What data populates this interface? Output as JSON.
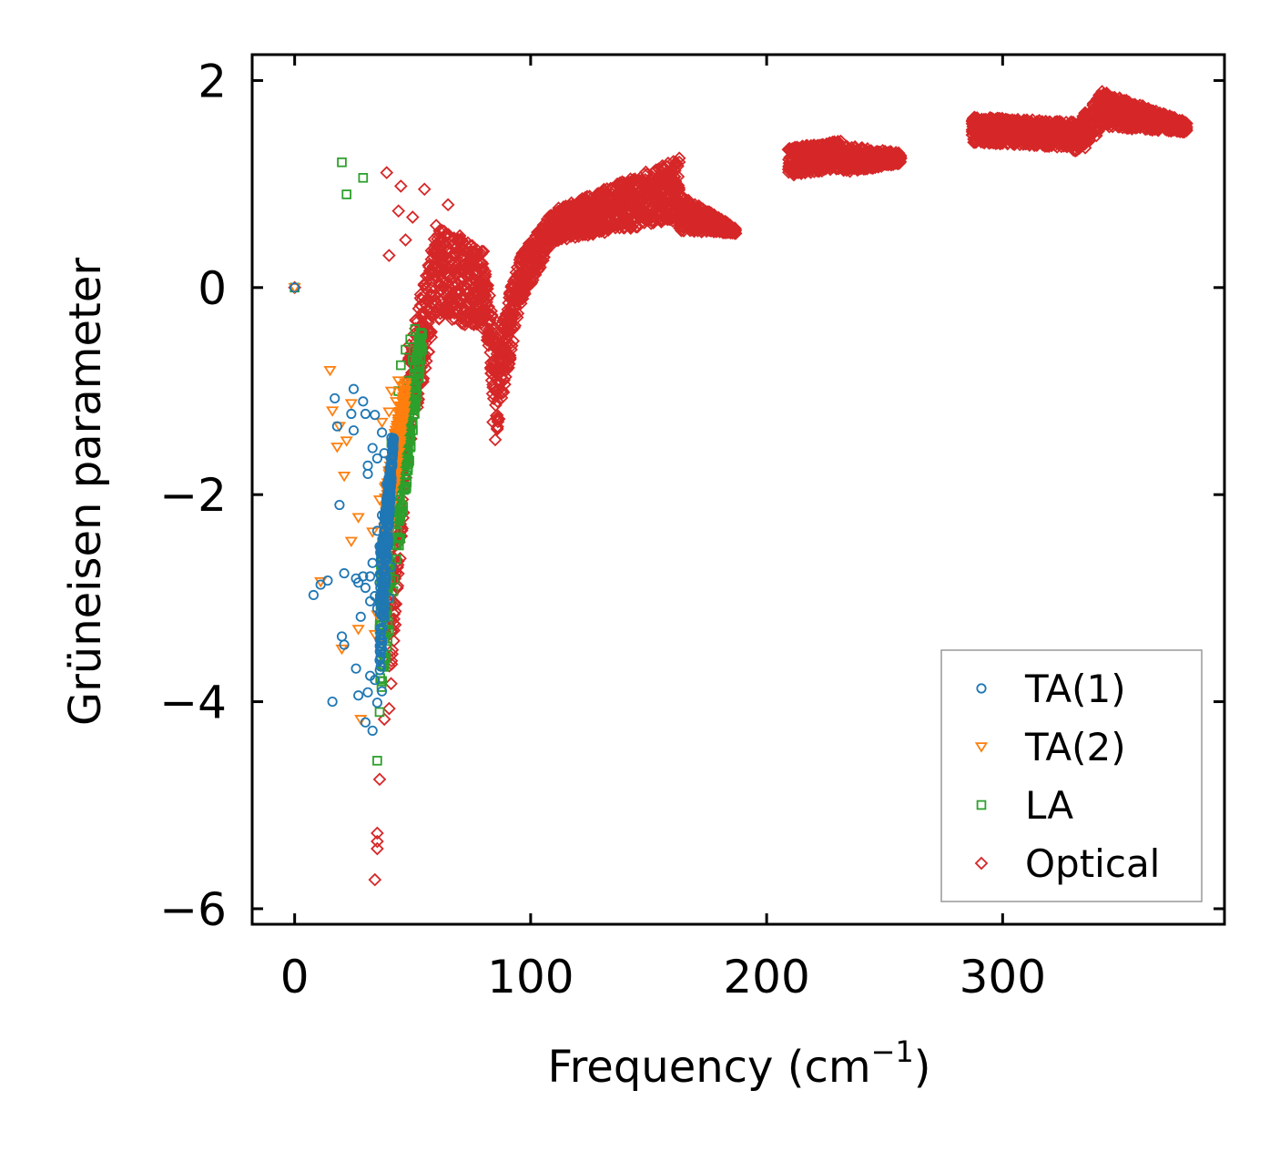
{
  "chart_data": {
    "type": "scatter",
    "title": "",
    "xlabel": "Frequency (cm",
    "xlabel_sup": "−1",
    "xlabel_tail": ")",
    "ylabel": "Grüneisen parameter",
    "xlim": [
      -18,
      394
    ],
    "ylim": [
      -6.15,
      2.25
    ],
    "xticks": [
      0,
      100,
      200,
      300
    ],
    "yticks": [
      -6,
      -4,
      -2,
      0,
      2
    ],
    "xtick_labels": [
      "0",
      "100",
      "200",
      "300"
    ],
    "ytick_labels": [
      "−6",
      "−4",
      "−2",
      "0",
      "2"
    ],
    "legend_position": "lower-right",
    "series": [
      {
        "name": "TA(1)",
        "marker": "circle",
        "color": "#1f77b4",
        "points": [
          [
            0,
            0
          ],
          [
            8,
            -2.97
          ],
          [
            11,
            -2.87
          ],
          [
            14,
            -2.83
          ],
          [
            16,
            -4.0
          ],
          [
            17,
            -1.07
          ],
          [
            18,
            -1.34
          ],
          [
            19,
            -2.1
          ],
          [
            20,
            -3.37
          ],
          [
            21,
            -2.76
          ],
          [
            21,
            -3.45
          ],
          [
            24,
            -1.22
          ],
          [
            25,
            -1.38
          ],
          [
            25,
            -0.98
          ],
          [
            26,
            -2.81
          ],
          [
            26,
            -3.68
          ],
          [
            27,
            -2.85
          ],
          [
            27,
            -3.94
          ],
          [
            28,
            -3.18
          ],
          [
            29,
            -2.79
          ],
          [
            29,
            -1.1
          ],
          [
            30,
            -1.22
          ],
          [
            30,
            -2.9
          ],
          [
            30,
            -4.2
          ],
          [
            31,
            -1.72
          ],
          [
            31,
            -3.91
          ],
          [
            31,
            -1.8
          ],
          [
            32,
            -2.79
          ],
          [
            32,
            -3.03
          ],
          [
            32,
            -3.75
          ],
          [
            33,
            -4.28
          ],
          [
            33,
            -2.66
          ],
          [
            33,
            -1.55
          ],
          [
            34,
            -2.98
          ],
          [
            34,
            -3.79
          ],
          [
            34,
            -1.23
          ],
          [
            35,
            -1.65
          ],
          [
            35,
            -2.35
          ],
          [
            35,
            -3.1
          ],
          [
            35,
            -4.01
          ],
          [
            36,
            -2.5
          ],
          [
            36,
            -3.6
          ],
          [
            36,
            -2.85
          ],
          [
            37,
            -1.4
          ],
          [
            37,
            -2.2
          ],
          [
            37,
            -3.9
          ],
          [
            38,
            -1.6
          ],
          [
            38,
            -3.2
          ],
          [
            39,
            -2.6
          ],
          [
            39,
            -1.9
          ],
          [
            40,
            -2.3
          ],
          [
            40,
            -3.0
          ],
          [
            41,
            -1.45
          ],
          [
            41,
            -2.7
          ]
        ]
      },
      {
        "name": "TA(2)",
        "marker": "triangle-down",
        "color": "#ff7f0e",
        "points": [
          [
            0,
            0
          ],
          [
            11,
            -2.84
          ],
          [
            15,
            -0.8
          ],
          [
            16,
            -1.19
          ],
          [
            18,
            -1.54
          ],
          [
            19,
            -1.34
          ],
          [
            20,
            -3.49
          ],
          [
            21,
            -1.82
          ],
          [
            22,
            -1.48
          ],
          [
            24,
            -1.12
          ],
          [
            24,
            -2.45
          ],
          [
            27,
            -2.22
          ],
          [
            27,
            -3.3
          ],
          [
            28,
            -4.17
          ],
          [
            33,
            -2.36
          ],
          [
            34,
            -3.35
          ],
          [
            35,
            -3.16
          ],
          [
            36,
            -2.05
          ],
          [
            37,
            -3.45
          ],
          [
            37,
            -1.3
          ],
          [
            38,
            -2.7
          ],
          [
            40,
            -1.8
          ],
          [
            40,
            -1.2
          ],
          [
            41,
            -1.0
          ],
          [
            42,
            -1.5
          ],
          [
            43,
            -1.1
          ],
          [
            44,
            -0.9
          ],
          [
            45,
            -1.25
          ],
          [
            46,
            -0.95
          ]
        ]
      },
      {
        "name": "LA",
        "marker": "square",
        "color": "#2ca02c",
        "points": [
          [
            0,
            0
          ],
          [
            20,
            1.21
          ],
          [
            22,
            0.9
          ],
          [
            29,
            1.06
          ],
          [
            35,
            -4.57
          ],
          [
            36,
            -4.1
          ],
          [
            36,
            -3.3
          ],
          [
            37,
            -3.8
          ],
          [
            37,
            -2.6
          ],
          [
            38,
            -3.0
          ],
          [
            39,
            -2.2
          ],
          [
            40,
            -2.7
          ],
          [
            41,
            -1.5
          ],
          [
            42,
            -2.82
          ],
          [
            43,
            -1.8
          ],
          [
            44,
            -1.0
          ],
          [
            45,
            -0.75
          ],
          [
            46,
            -1.3
          ],
          [
            47,
            -0.6
          ],
          [
            48,
            -0.9
          ],
          [
            49,
            -0.5
          ],
          [
            50,
            -0.7
          ],
          [
            51,
            -0.4
          ],
          [
            52,
            -0.6
          ],
          [
            53,
            -0.5
          ],
          [
            54,
            -0.45
          ]
        ]
      },
      {
        "name": "Optical",
        "marker": "diamond",
        "color": "#d62728",
        "points": [
          [
            0,
            0
          ],
          [
            34,
            -5.72
          ],
          [
            35,
            -5.42
          ],
          [
            35,
            -5.35
          ],
          [
            35,
            -5.27
          ],
          [
            36,
            -4.75
          ],
          [
            38,
            -4.17
          ],
          [
            39,
            1.11
          ],
          [
            40,
            0.31
          ],
          [
            44,
            0.74
          ],
          [
            45,
            0.98
          ],
          [
            47,
            0.46
          ],
          [
            48,
            -1.35
          ],
          [
            50,
            0.68
          ],
          [
            52,
            -0.65
          ],
          [
            55,
            0.95
          ],
          [
            57,
            0.2
          ],
          [
            58,
            0.0
          ],
          [
            60,
            0.6
          ],
          [
            62,
            0.35
          ],
          [
            65,
            0.8
          ],
          [
            67,
            0.1
          ],
          [
            70,
            0.5
          ],
          [
            72,
            -0.1
          ],
          [
            75,
            0.3
          ],
          [
            78,
            0.0
          ],
          [
            80,
            0.35
          ],
          [
            82,
            -0.5
          ],
          [
            84,
            -1.3
          ],
          [
            85,
            -1.47
          ],
          [
            86,
            -1.1
          ],
          [
            88,
            -0.8
          ],
          [
            90,
            -0.4
          ],
          [
            92,
            -0.1
          ],
          [
            95,
            0.1
          ],
          [
            100,
            0.35
          ],
          [
            105,
            0.5
          ],
          [
            110,
            0.6
          ],
          [
            115,
            0.7
          ],
          [
            120,
            0.65
          ],
          [
            125,
            0.8
          ],
          [
            130,
            0.75
          ],
          [
            135,
            0.8
          ],
          [
            140,
            0.9
          ],
          [
            145,
            0.85
          ],
          [
            150,
            0.95
          ],
          [
            155,
            1.0
          ],
          [
            160,
            1.1
          ],
          [
            163,
            1.25
          ],
          [
            165,
            0.75
          ],
          [
            170,
            0.7
          ],
          [
            175,
            0.65
          ],
          [
            180,
            0.6
          ],
          [
            185,
            0.55
          ],
          [
            210,
            1.2
          ],
          [
            215,
            1.2
          ],
          [
            220,
            1.3
          ],
          [
            225,
            1.35
          ],
          [
            230,
            1.25
          ],
          [
            235,
            1.15
          ],
          [
            240,
            1.3
          ],
          [
            245,
            1.3
          ],
          [
            250,
            1.3
          ],
          [
            255,
            1.25
          ],
          [
            290,
            1.55
          ],
          [
            300,
            1.55
          ],
          [
            310,
            1.5
          ],
          [
            320,
            1.55
          ],
          [
            330,
            1.45
          ],
          [
            335,
            1.35
          ],
          [
            340,
            1.75
          ],
          [
            345,
            1.85
          ],
          [
            350,
            1.8
          ],
          [
            360,
            1.7
          ],
          [
            370,
            1.62
          ],
          [
            378,
            1.55
          ]
        ]
      }
    ],
    "dense_bands": [
      {
        "series": "TA(1)",
        "count": 260,
        "x_from": 36,
        "x_to": 42,
        "y_lo_from": -3.9,
        "y_lo_to": -1.5,
        "y_hi_from": -2.6,
        "y_hi_to": -1.4
      },
      {
        "series": "TA(2)",
        "count": 200,
        "x_from": 38,
        "x_to": 47,
        "y_lo_from": -2.7,
        "y_lo_to": -1.1,
        "y_hi_from": -1.9,
        "y_hi_to": -0.9
      },
      {
        "series": "LA",
        "count": 240,
        "x_from": 36,
        "x_to": 54,
        "y_lo_from": -4.1,
        "y_lo_to": -0.65,
        "y_hi_from": -2.5,
        "y_hi_to": -0.35
      },
      {
        "series": "Optical",
        "count": 4200,
        "segments": [
          {
            "x_from": 40,
            "x_to": 48,
            "y_lo_from": -4.1,
            "y_lo_to": -1.6,
            "y_hi_from": -2.8,
            "y_hi_to": -1.0
          },
          {
            "x_from": 48,
            "x_to": 60,
            "y_lo_from": -1.6,
            "y_lo_to": -0.3,
            "y_hi_from": -0.6,
            "y_hi_to": 0.6
          },
          {
            "x_from": 60,
            "x_to": 80,
            "y_lo_from": -0.3,
            "y_lo_to": -0.4,
            "y_hi_from": 0.6,
            "y_hi_to": 0.35
          },
          {
            "x_from": 80,
            "x_to": 86,
            "y_lo_from": -0.4,
            "y_lo_to": -1.4,
            "y_hi_from": 0.3,
            "y_hi_to": -0.5
          },
          {
            "x_from": 86,
            "x_to": 95,
            "y_lo_from": -1.4,
            "y_lo_to": -0.2,
            "y_hi_from": -0.5,
            "y_hi_to": 0.3
          },
          {
            "x_from": 95,
            "x_to": 110,
            "y_lo_from": -0.2,
            "y_lo_to": 0.45,
            "y_hi_from": 0.3,
            "y_hi_to": 0.75
          },
          {
            "x_from": 110,
            "x_to": 163,
            "y_lo_from": 0.45,
            "y_lo_to": 0.65,
            "y_hi_from": 0.75,
            "y_hi_to": 1.25
          },
          {
            "x_from": 163,
            "x_to": 187,
            "y_lo_from": 0.55,
            "y_lo_to": 0.52,
            "y_hi_from": 0.9,
            "y_hi_to": 0.58
          },
          {
            "x_from": 209,
            "x_to": 232,
            "y_lo_from": 1.08,
            "y_lo_to": 1.15,
            "y_hi_from": 1.35,
            "y_hi_to": 1.42
          },
          {
            "x_from": 232,
            "x_to": 257,
            "y_lo_from": 1.1,
            "y_lo_to": 1.2,
            "y_hi_from": 1.38,
            "y_hi_to": 1.3
          },
          {
            "x_from": 287,
            "x_to": 330,
            "y_lo_from": 1.4,
            "y_lo_to": 1.35,
            "y_hi_from": 1.65,
            "y_hi_to": 1.6
          },
          {
            "x_from": 330,
            "x_to": 342,
            "y_lo_from": 1.3,
            "y_lo_to": 1.5,
            "y_hi_from": 1.55,
            "y_hi_to": 1.9
          },
          {
            "x_from": 342,
            "x_to": 378,
            "y_lo_from": 1.55,
            "y_lo_to": 1.5,
            "y_hi_from": 1.9,
            "y_hi_to": 1.6
          }
        ]
      }
    ]
  }
}
